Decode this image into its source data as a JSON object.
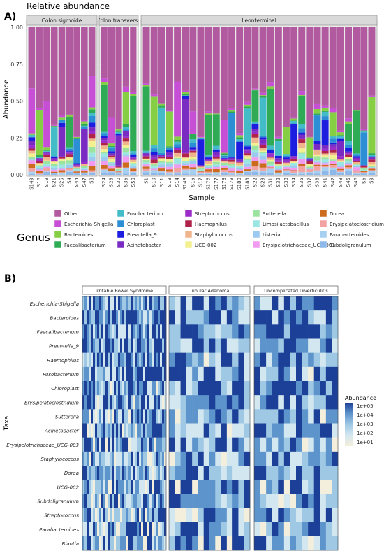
{
  "panelA": {
    "label": "A)",
    "title": "Relative abundance",
    "ylabel": "Abundance",
    "xlabel": "Sample",
    "yticks": [
      "0.00",
      "0.25",
      "0.50",
      "0.75",
      "1.00"
    ],
    "legend_title": "Genus",
    "facets": [
      {
        "name": "Colon sigmoide",
        "samples": [
          "S149",
          "S16",
          "S19",
          "S21",
          "S25",
          "S4",
          "S44",
          "S47",
          "S8"
        ]
      },
      {
        "name": "Colon transverso",
        "samples": [
          "S24",
          "S28",
          "S30",
          "S36",
          "S50"
        ]
      },
      {
        "name": "Ileonterminal",
        "samples": [
          "S1",
          "S10",
          "S11",
          "S13",
          "S14",
          "S148",
          "S15",
          "S17",
          "S176",
          "S177",
          "S178",
          "S179",
          "S180",
          "S183",
          "S22",
          "S23",
          "S31",
          "S32",
          "S33",
          "S34",
          "S35",
          "S37",
          "S38",
          "S41",
          "S42",
          "S43",
          "S45",
          "S46",
          "S6",
          "S9"
        ]
      }
    ],
    "genera": [
      {
        "name": "Other",
        "color": "#b25aa0"
      },
      {
        "name": "Escherichia-Shigella",
        "color": "#c64fd6"
      },
      {
        "name": "Bacteroides",
        "color": "#86cf45"
      },
      {
        "name": "Faecalibacterium",
        "color": "#2faa55"
      },
      {
        "name": "Fusobacterium",
        "color": "#44bcc8"
      },
      {
        "name": "Chloroplast",
        "color": "#2c8fd6"
      },
      {
        "name": "Prevotella_9",
        "color": "#1d1de0"
      },
      {
        "name": "Acinetobacter",
        "color": "#7a2cc2"
      },
      {
        "name": "Streptococcus",
        "color": "#9a2cc9"
      },
      {
        "name": "Haemophilus",
        "color": "#b0244a"
      },
      {
        "name": "Staphylococcus",
        "color": "#f0b58c"
      },
      {
        "name": "UCG-002",
        "color": "#f3f08f"
      },
      {
        "name": "Sutterella",
        "color": "#9de3a0"
      },
      {
        "name": "Limosilactobacillus",
        "color": "#9ae6e2"
      },
      {
        "name": "Listeria",
        "color": "#9cc9f0"
      },
      {
        "name": "Erysipelotrichaceae_UCG-003",
        "color": "#f09af0"
      },
      {
        "name": "Dorea",
        "color": "#cc6a1e"
      },
      {
        "name": "Erysipelatoclostridium",
        "color": "#f2a2a2"
      },
      {
        "name": "Parabacteroides",
        "color": "#a6d0f2"
      },
      {
        "name": "Subdoligranulum",
        "color": "#8fb8ea"
      }
    ]
  },
  "panelB": {
    "label": "B)",
    "ylabel": "Taxa",
    "taxa": [
      "Escherichia-Shigella",
      "Bacteroides",
      "Faecalibacterium",
      "Prevotella_9",
      "Haemophilus",
      "Fusobacterium",
      "Chloroplast",
      "Erysipelatoclostridium",
      "Sutterella",
      "Acinetobacter",
      "Erysipelotrichaceae_UCG-003",
      "Staphylococcus",
      "Dorea",
      "UCG-002",
      "Subdoligranulum",
      "Streptococcus",
      "Parabacteroides",
      "Blautia"
    ],
    "facets": [
      {
        "name": "Irritable Bowel Syndrome",
        "n": 40
      },
      {
        "name": "Tubular Adenoma",
        "n": 14
      },
      {
        "name": "Uncomplicated Diverticulitis",
        "n": 14
      }
    ],
    "legend": {
      "title": "Abundance",
      "labels": [
        "1e+05",
        "1e+04",
        "1e+03",
        "1e+02",
        "1e+01"
      ],
      "colors": [
        "#f3efdc",
        "#d3e7f0",
        "#9ec8e4",
        "#5e94cc",
        "#1c3f98"
      ]
    }
  },
  "chart_data": [
    {
      "type": "bar",
      "title": "Relative abundance",
      "xlabel": "Sample",
      "ylabel": "Abundance",
      "ylim": [
        0,
        1
      ],
      "stacked": true,
      "categories": [
        "S149",
        "S16",
        "S19",
        "S21",
        "S25",
        "S4",
        "S44",
        "S47",
        "S8",
        "S24",
        "S28",
        "S30",
        "S36",
        "S50",
        "S1",
        "S10",
        "S11",
        "S13",
        "S14",
        "S148",
        "S15",
        "S17",
        "S176",
        "S177",
        "S178",
        "S179",
        "S180",
        "S183",
        "S22",
        "S23",
        "S31",
        "S32",
        "S33",
        "S34",
        "S35",
        "S37",
        "S38",
        "S41",
        "S42",
        "S43",
        "S45",
        "S46",
        "S6",
        "S9"
      ],
      "legend_title": "Genus",
      "legend_position": "bottom"
    },
    {
      "type": "heatmap",
      "ylabel": "Taxa",
      "facets": [
        "Irritable Bowel Syndrome",
        "Tubular Adenoma",
        "Uncomplicated Diverticulitis"
      ],
      "colorbar_title": "Abundance",
      "colorbar_labels": [
        "1e+05",
        "1e+04",
        "1e+03",
        "1e+02",
        "1e+01"
      ]
    }
  ]
}
